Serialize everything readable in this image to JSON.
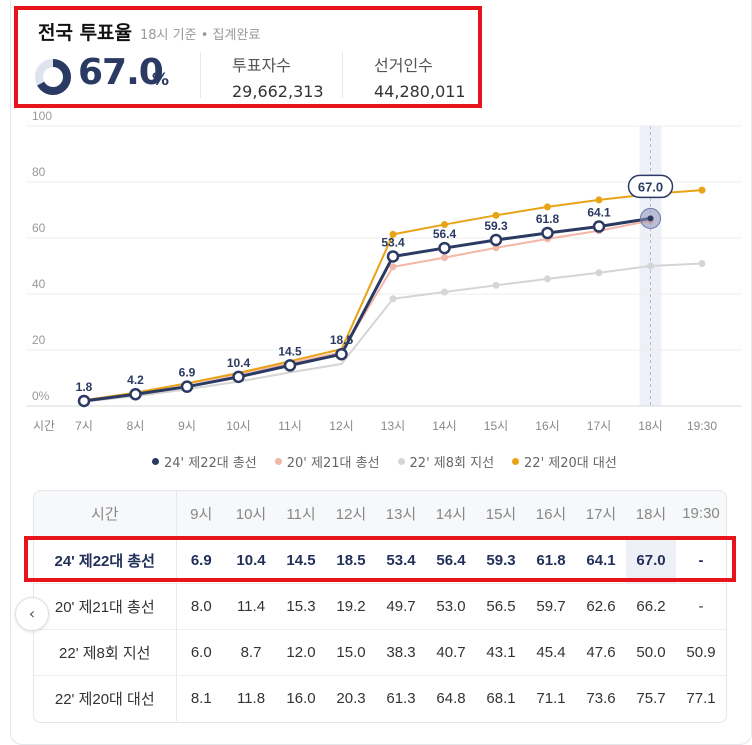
{
  "summary": {
    "title": "전국 투표율",
    "subtitle": "18시 기준 • 집계완료",
    "turnout": "67.0",
    "turnout_unit": "%",
    "turnout_fraction": 0.67,
    "voters_label": "투표자수",
    "voters_value": "29,662,313",
    "electorate_label": "선거인수",
    "electorate_value": "44,280,011"
  },
  "colors": {
    "s24": "#2b3a63",
    "s20": "#f2b7a6",
    "s22": "#d5d5d5",
    "s16": "#e8a317",
    "highlight_box": "#e8141c"
  },
  "chart_data": {
    "type": "line",
    "x_labels": [
      "7시",
      "8시",
      "9시",
      "10시",
      "11시",
      "12시",
      "13시",
      "14시",
      "15시",
      "16시",
      "17시",
      "18시",
      "19:30"
    ],
    "x_axis_label": "시간",
    "y_ticks": [
      "0%",
      "20",
      "40",
      "60",
      "80",
      "100"
    ],
    "ylim": [
      0,
      100
    ],
    "current_label": "67.0",
    "series": [
      {
        "name": "24' 제22대 총선",
        "color": "#2b3a63",
        "values": [
          1.8,
          4.2,
          6.9,
          10.4,
          14.5,
          18.5,
          53.4,
          56.4,
          59.3,
          61.8,
          64.1,
          67.0,
          null
        ],
        "labeled": true
      },
      {
        "name": "20' 제21대 총선",
        "color": "#f2b7a6",
        "values": [
          2.1,
          4.6,
          8.0,
          11.4,
          15.3,
          19.2,
          49.7,
          53.0,
          56.5,
          59.7,
          62.6,
          66.2,
          null
        ],
        "labeled": false
      },
      {
        "name": "22' 제8회 지선",
        "color": "#d5d5d5",
        "values": [
          1.6,
          3.5,
          6.0,
          8.7,
          12.0,
          15.0,
          38.3,
          40.7,
          43.1,
          45.4,
          47.6,
          50.0,
          50.9
        ],
        "labeled": false
      },
      {
        "name": "22' 제20대 대선",
        "color": "#e8a317",
        "values": [
          2.0,
          4.8,
          8.1,
          11.8,
          16.0,
          20.3,
          61.3,
          64.8,
          68.1,
          71.1,
          73.6,
          75.7,
          77.1
        ],
        "labeled": false
      }
    ]
  },
  "table": {
    "header_first": "시간",
    "columns": [
      "9시",
      "10시",
      "11시",
      "12시",
      "13시",
      "14시",
      "15시",
      "16시",
      "17시",
      "18시",
      "19:30"
    ],
    "rows": [
      {
        "label": "24' 제22대 총선",
        "values": [
          "6.9",
          "10.4",
          "14.5",
          "18.5",
          "53.4",
          "56.4",
          "59.3",
          "61.8",
          "64.1",
          "67.0",
          "-"
        ]
      },
      {
        "label": "20' 제21대 총선",
        "values": [
          "8.0",
          "11.4",
          "15.3",
          "19.2",
          "49.7",
          "53.0",
          "56.5",
          "59.7",
          "62.6",
          "66.2",
          "-"
        ]
      },
      {
        "label": "22' 제8회 지선",
        "values": [
          "6.0",
          "8.7",
          "12.0",
          "15.0",
          "38.3",
          "40.7",
          "43.1",
          "45.4",
          "47.6",
          "50.0",
          "50.9"
        ]
      },
      {
        "label": "22' 제20대 대선",
        "values": [
          "8.1",
          "11.8",
          "16.0",
          "20.3",
          "61.3",
          "64.8",
          "68.1",
          "71.1",
          "73.6",
          "75.7",
          "77.1"
        ]
      }
    ]
  },
  "scroll_left_glyph": "‹"
}
